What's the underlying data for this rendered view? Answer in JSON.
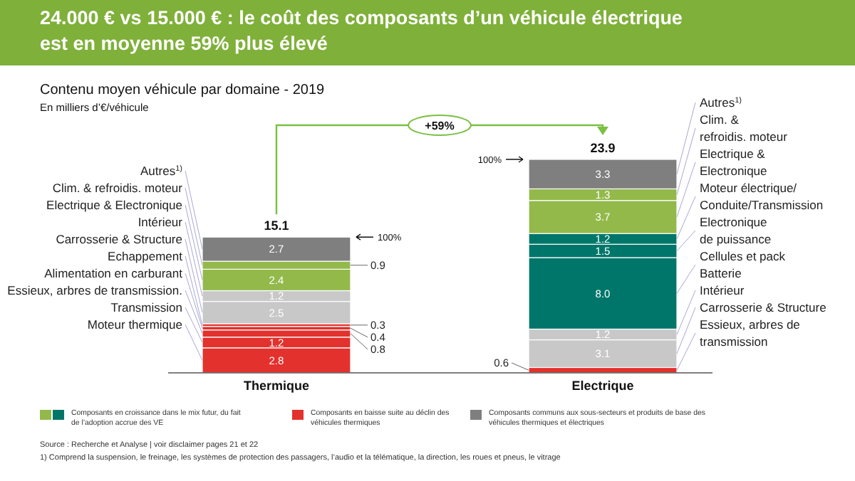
{
  "chart_data": {
    "type": "bar",
    "stacked": true,
    "title": "24.000 € vs 15.000 € : le coût des composants d’un véhicule électrique est en moyenne 59% plus élevé",
    "subtitle": "Contenu moyen véhicule par domaine - 2019",
    "ylabel": "En milliers d’€/véhicule",
    "categories": [
      "Thermique",
      "Electrique"
    ],
    "totals": [
      "15.1",
      "23.9"
    ],
    "series": [
      {
        "name": "Moteur thermique",
        "color": "#e3312d",
        "values": [
          2.8,
          null
        ],
        "value_labels": [
          "2.8",
          null
        ]
      },
      {
        "name": "Transmission",
        "color": "#e3312d",
        "values": [
          1.2,
          null
        ],
        "value_labels": [
          "1.2",
          null
        ]
      },
      {
        "name": "Essieux, arbres de transmission.",
        "color": "#e3312d",
        "values": [
          0.8,
          null
        ],
        "value_labels": [
          "0.8",
          null
        ]
      },
      {
        "name": "Alimentation en carburant",
        "color": "#e3312d",
        "values": [
          0.4,
          null
        ],
        "value_labels": [
          "0.4",
          null
        ]
      },
      {
        "name": "Echappement",
        "color": "#e3312d",
        "values": [
          0.3,
          null
        ],
        "value_labels": [
          "0.3",
          null
        ]
      },
      {
        "name": "Carrosserie & Structure",
        "color": "#c8c8c8",
        "values": [
          2.5,
          null
        ],
        "value_labels": [
          "2.5",
          null
        ]
      },
      {
        "name": "Intérieur",
        "color": "#c8c8c8",
        "values": [
          1.2,
          null
        ],
        "value_labels": [
          "1.2",
          null
        ]
      },
      {
        "name": "Electrique & Electronique",
        "color": "#93b94b",
        "values": [
          2.4,
          null
        ],
        "value_labels": [
          "2.4",
          null
        ]
      },
      {
        "name": "Clim. & refroidis. moteur",
        "color": "#93b94b",
        "values": [
          0.9,
          null
        ],
        "value_labels": [
          "0.9",
          null
        ]
      },
      {
        "name": "Autres$^{1)}$",
        "color": "#7f7f7f",
        "values": [
          2.7,
          null
        ],
        "value_labels": [
          "2.7",
          null
        ]
      },
      {
        "name": "Essieux, arbres de\ntransmission",
        "color": "#e3312d",
        "values": [
          null,
          0.6
        ],
        "value_labels": [
          null,
          "0.6"
        ]
      },
      {
        "name": "Carrosserie & Structure",
        "color": "#c8c8c8",
        "values": [
          null,
          3.1
        ],
        "value_labels": [
          null,
          "3.1"
        ]
      },
      {
        "name": "Intérieur",
        "color": "#c8c8c8",
        "values": [
          null,
          1.2
        ],
        "value_labels": [
          null,
          "1.2"
        ]
      },
      {
        "name": "Cellules et pack\nBatterie",
        "color": "#00766a",
        "values": [
          null,
          8.0
        ],
        "value_labels": [
          null,
          "8.0"
        ]
      },
      {
        "name": "Electronique\nde puissance",
        "color": "#00766a",
        "values": [
          null,
          1.5
        ],
        "value_labels": [
          null,
          "1.5"
        ]
      },
      {
        "name": "Moteur électrique/\nConduite/Transmission",
        "color": "#00766a",
        "values": [
          null,
          1.2
        ],
        "value_labels": [
          null,
          "1.2"
        ]
      },
      {
        "name": "Electrique &\nElectronique",
        "color": "#93b94b",
        "values": [
          null,
          3.7
        ],
        "value_labels": [
          null,
          "3.7"
        ]
      },
      {
        "name": "Clim. &\nrefroidis. moteur",
        "color": "#93b94b",
        "values": [
          null,
          1.3
        ],
        "value_labels": [
          null,
          "1.3"
        ]
      },
      {
        "name": "Autres$^{1)}$",
        "color": "#7f7f7f",
        "values": [
          null,
          3.3
        ],
        "value_labels": [
          null,
          "3.3"
        ]
      }
    ],
    "annotations": [
      "+59%",
      "100%",
      "100%",
      "Source : Recherche et Analyse | voir disclaimer pages 21 et 22",
      "1) Comprend la suspension, le freinage, les systèmes de protection des passagers, l’audio et la télématique, la direction, les roues et pneus, le vitrage",
      "Composants en croissance dans le mix futur, du fait\nde l’adoption accrue des VE",
      "Composants en baisse suite au déclin des\nvéhicules thermiques",
      "Composants communs aux sous-secteurs et produits de base des\nvéhicules thermiques et électriques"
    ]
  }
}
